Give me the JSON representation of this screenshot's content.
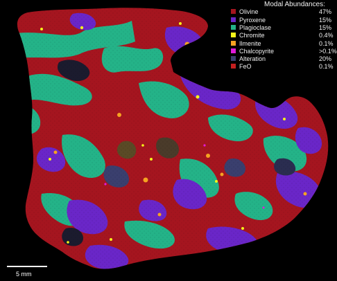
{
  "legend": {
    "title": "Modal Abundances:",
    "minerals": [
      {
        "name": "Olivine",
        "value": "47%",
        "color": "#a5151f"
      },
      {
        "name": "Pyroxene",
        "value": "15%",
        "color": "#6a26c8"
      },
      {
        "name": "Plagioclase",
        "value": "15%",
        "color": "#24b388"
      },
      {
        "name": "Chromite",
        "value": "0.4%",
        "color": "#f5f51a"
      },
      {
        "name": "Ilmenite",
        "value": "0.1%",
        "color": "#f5a321"
      },
      {
        "name": "Chalcopyrite",
        "value": ">0.1%",
        "color": "#e01bd9"
      },
      {
        "name": "Alteration",
        "value": "20%",
        "color": "#3a3f6e"
      },
      {
        "name": "FeO",
        "value": "0.1%",
        "color": "#c41f1f"
      }
    ]
  },
  "scale": {
    "label": "5 mm"
  }
}
